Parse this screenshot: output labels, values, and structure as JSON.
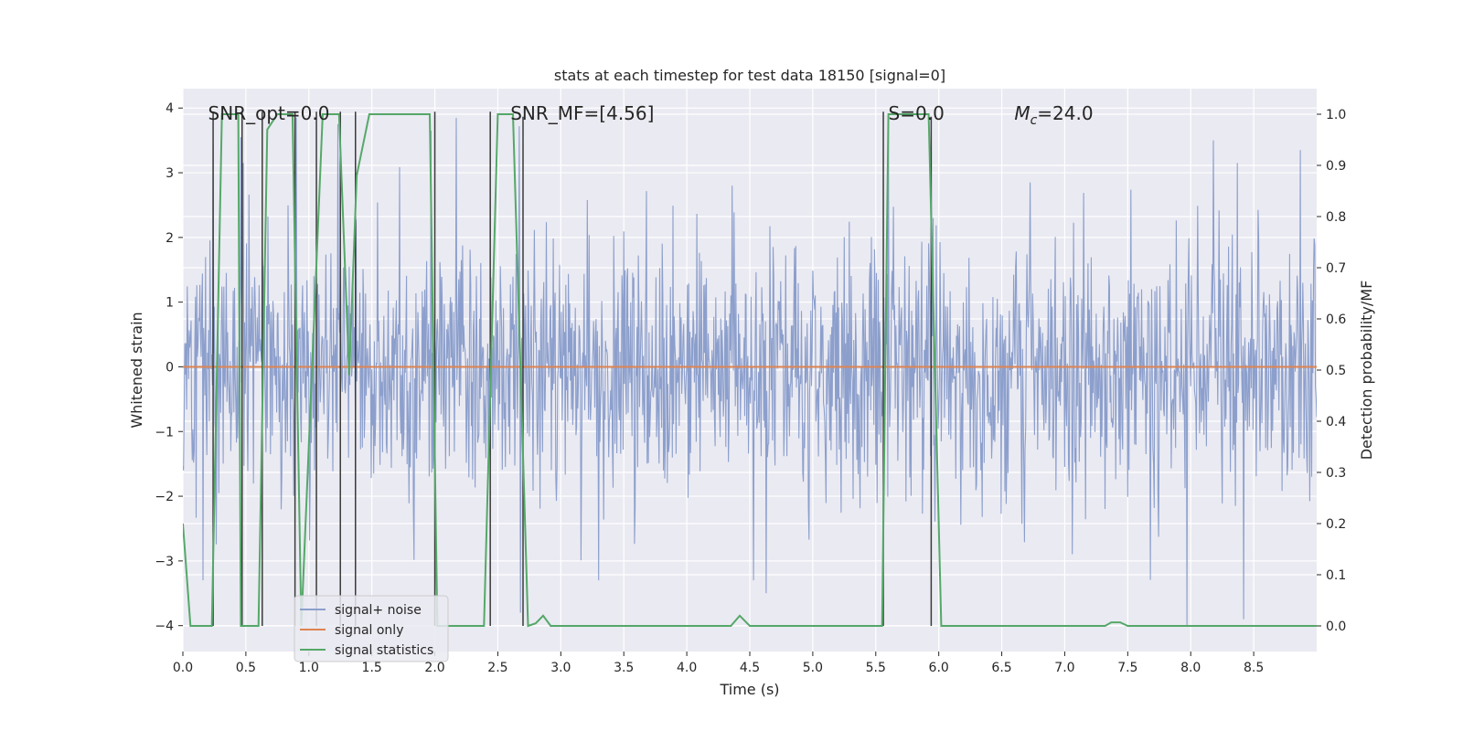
{
  "chart_data": {
    "type": "line",
    "title": "stats at each timestep for test data 18150 [signal=0]",
    "xlabel": "Time (s)",
    "ylabel": "Whitened strain",
    "ylabel_right": "Detection probability/MF",
    "xlim": [
      0.0,
      9.0
    ],
    "ylim": [
      -4.4,
      4.3
    ],
    "ylim_right": [
      -0.05,
      1.05
    ],
    "x_ticks": [
      "0.0",
      "0.5",
      "1.0",
      "1.5",
      "2.0",
      "2.5",
      "3.0",
      "3.5",
      "4.0",
      "4.5",
      "5.0",
      "5.5",
      "6.0",
      "6.5",
      "7.0",
      "7.5",
      "8.0",
      "8.5"
    ],
    "y_ticks": [
      "4",
      "3",
      "2",
      "1",
      "0",
      "−1",
      "−2",
      "−3",
      "−4"
    ],
    "y_tick_values": [
      4,
      3,
      2,
      1,
      0,
      -1,
      -2,
      -3,
      -4
    ],
    "y_right_ticks": [
      "1.0",
      "0.9",
      "0.8",
      "0.7",
      "0.6",
      "0.5",
      "0.4",
      "0.3",
      "0.2",
      "0.1",
      "0.0"
    ],
    "y_right_tick_values": [
      1.0,
      0.9,
      0.8,
      0.7,
      0.6,
      0.5,
      0.4,
      0.3,
      0.2,
      0.1,
      0.0
    ],
    "grid": true,
    "legend_position": "lower-left",
    "annotations": [
      {
        "text": "SNR_opt=0.0",
        "x": 0.2,
        "y": 3.85
      },
      {
        "text": "SNR_MF=[4.56]",
        "x": 2.6,
        "y": 3.85
      },
      {
        "text": "S=0.0",
        "x": 5.6,
        "y": 3.85
      },
      {
        "text": "M_c=24.0",
        "x": 6.6,
        "y": 3.85
      }
    ],
    "series": [
      {
        "name": "signal+ noise",
        "axis": "left",
        "color": "#8c9fcc",
        "kind": "noise",
        "std": 1.0,
        "sample_rate": 200,
        "peaks": [
          [
            0.24,
            3.45
          ],
          [
            0.46,
            3.55
          ],
          [
            0.48,
            3.15
          ],
          [
            0.9,
            3.85
          ],
          [
            1.23,
            3.75
          ],
          [
            1.97,
            3.65
          ],
          [
            2.17,
            3.85
          ],
          [
            2.67,
            3.72
          ],
          [
            2.68,
            -3.8
          ],
          [
            4.63,
            -3.5
          ],
          [
            5.6,
            3.9
          ],
          [
            5.94,
            3.0
          ],
          [
            7.97,
            -4.0
          ],
          [
            8.18,
            3.5
          ],
          [
            8.37,
            3.15
          ],
          [
            8.42,
            -3.9
          ],
          [
            8.87,
            3.35
          ]
        ]
      },
      {
        "name": "signal only",
        "axis": "left",
        "color": "#dd8452",
        "x": [
          0.0,
          9.0
        ],
        "y": [
          0.0,
          0.0
        ]
      },
      {
        "name": "signal statistics",
        "axis": "right",
        "color": "#55a868",
        "x": [
          0.0,
          0.06,
          0.23,
          0.31,
          0.44,
          0.46,
          0.6,
          0.67,
          0.75,
          0.87,
          0.94,
          1.11,
          1.24,
          1.32,
          1.38,
          1.48,
          1.96,
          2.02,
          2.25,
          2.39,
          2.5,
          2.62,
          2.74,
          2.8,
          2.86,
          2.92,
          2.98,
          4.35,
          4.42,
          4.5,
          5.55,
          5.6,
          5.92,
          6.02,
          6.2,
          6.3,
          7.32,
          7.37,
          7.44,
          7.5,
          9.0
        ],
        "y": [
          0.2,
          0.0,
          0.0,
          1.0,
          1.0,
          0.0,
          0.0,
          0.97,
          1.0,
          1.0,
          0.0,
          1.0,
          1.0,
          0.49,
          0.88,
          1.0,
          1.0,
          0.0,
          0.0,
          0.0,
          1.0,
          1.0,
          0.0,
          0.005,
          0.02,
          0.0,
          0.0,
          0.0,
          0.02,
          0.0,
          0.0,
          1.0,
          1.0,
          0.0,
          0.0,
          0.0,
          0.0,
          0.007,
          0.007,
          0.0,
          0.0
        ]
      }
    ],
    "vertical_markers": {
      "color": "#3a3a3a",
      "x": [
        0.24,
        0.47,
        0.63,
        0.89,
        1.06,
        1.25,
        1.37,
        2.0,
        2.44,
        2.7,
        5.56,
        5.94
      ],
      "x_upper": [
        2.7,
        5.94
      ]
    },
    "colors": {
      "plot_background": "#eaeaf2",
      "grid": "#ffffff",
      "text": "#262626"
    }
  }
}
